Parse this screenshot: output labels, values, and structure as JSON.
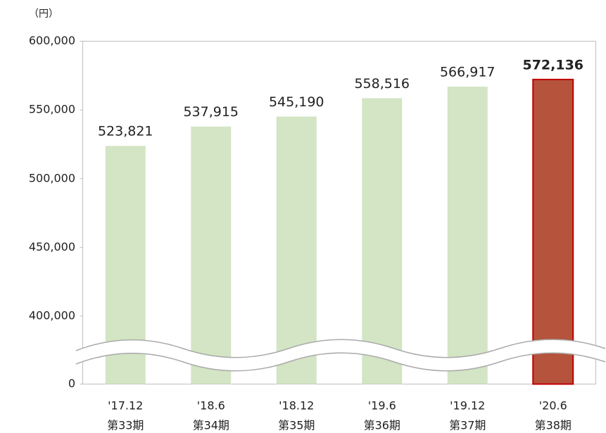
{
  "chart_data": {
    "type": "bar",
    "unit_label": "（円）",
    "categories": [
      "'17.12",
      "'18.6",
      "'18.12",
      "'19.6",
      "'19.12",
      "'20.6"
    ],
    "periods": [
      "第33期",
      "第34期",
      "第35期",
      "第36期",
      "第37期",
      "第38期"
    ],
    "values": [
      523821,
      537915,
      545190,
      558516,
      566917,
      572136
    ],
    "value_labels": [
      "523,821",
      "537,915",
      "545,190",
      "558,516",
      "566,917",
      "572,136"
    ],
    "colors": [
      "#d3e5c4",
      "#d3e5c4",
      "#d3e5c4",
      "#d3e5c4",
      "#d3e5c4",
      "#b5533c"
    ],
    "highlight": 5,
    "axis_break": true,
    "ylim": [
      0,
      600000
    ],
    "yticks": [
      {
        "value": 0,
        "label": "0"
      },
      {
        "value": 400000,
        "label": "400,000"
      },
      {
        "value": 450000,
        "label": "450,000"
      },
      {
        "value": 500000,
        "label": "500,000"
      },
      {
        "value": 550000,
        "label": "550,000"
      },
      {
        "value": 600000,
        "label": "600,000"
      }
    ]
  }
}
